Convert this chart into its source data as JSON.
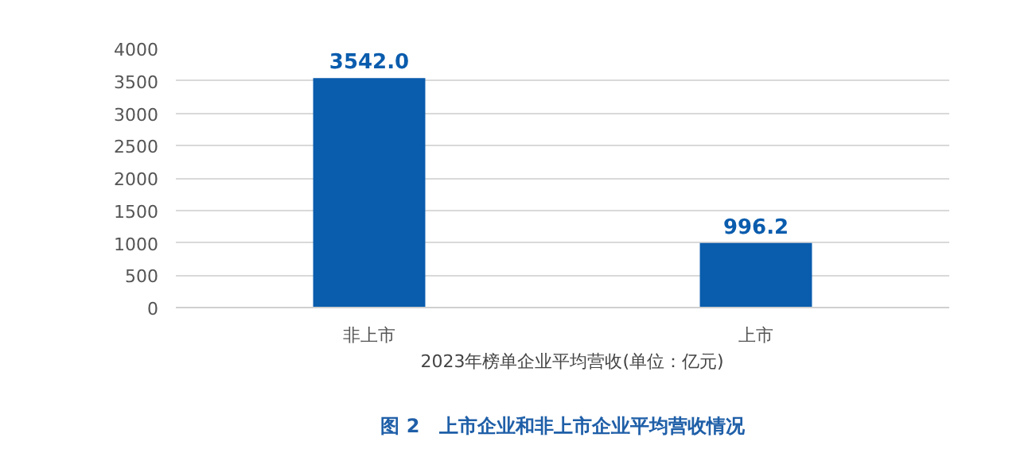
{
  "chart_data": {
    "type": "bar",
    "title": "图 2　上市企业和非上市企业平均营收情况",
    "categories": [
      "非上市",
      "上市"
    ],
    "series": [
      {
        "name": "2023年榜单企业平均营收(单位：亿元)",
        "color": "#0a5cad",
        "values": [
          3542.0,
          996.2
        ]
      }
    ],
    "value_labels": [
      "3542.0",
      "996.2"
    ],
    "ylim": [
      0,
      4000
    ],
    "yticks": [
      0,
      500,
      1000,
      1500,
      2000,
      2500,
      3000,
      3500,
      4000
    ],
    "grid": "y",
    "legend": "bottom"
  }
}
